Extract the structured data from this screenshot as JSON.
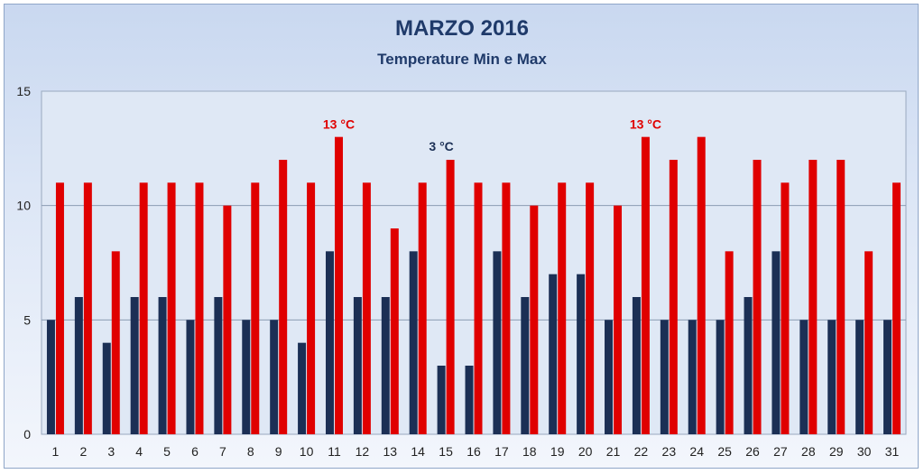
{
  "chart_data": {
    "type": "bar",
    "title": "MARZO 2016",
    "subtitle": "Temperature Min e Max",
    "xlabel": "",
    "ylabel": "",
    "ylim": [
      0,
      15
    ],
    "yticks": [
      "0",
      "5",
      "10",
      "15"
    ],
    "grid": true,
    "categories": [
      "1",
      "2",
      "3",
      "4",
      "5",
      "6",
      "7",
      "8",
      "9",
      "10",
      "11",
      "12",
      "13",
      "14",
      "15",
      "16",
      "17",
      "18",
      "19",
      "20",
      "21",
      "22",
      "23",
      "24",
      "25",
      "26",
      "27",
      "28",
      "29",
      "30",
      "31"
    ],
    "series": [
      {
        "color": "#1b2f55",
        "values": [
          5,
          6,
          4,
          6,
          6,
          5,
          6,
          5,
          5,
          4,
          8,
          6,
          6,
          8,
          3,
          3,
          8,
          6,
          7,
          7,
          5,
          6,
          5,
          5,
          5,
          6,
          8,
          5,
          5,
          5,
          5
        ]
      },
      {
        "color": "#e00000",
        "values": [
          11,
          11,
          8,
          11,
          11,
          11,
          10,
          11,
          12,
          11,
          13,
          11,
          9,
          11,
          12,
          11,
          11,
          10,
          11,
          11,
          10,
          13,
          12,
          13,
          8,
          12,
          11,
          12,
          12,
          8,
          11
        ]
      }
    ],
    "annotations": [
      {
        "text": "13 °C",
        "category": "11",
        "series": 1,
        "color": "#e00000"
      },
      {
        "text": "3 °C",
        "category": "15",
        "series": 0,
        "color": "#1b2f55"
      },
      {
        "text": "13 °C",
        "category": "22",
        "series": 1,
        "color": "#e00000"
      }
    ]
  }
}
